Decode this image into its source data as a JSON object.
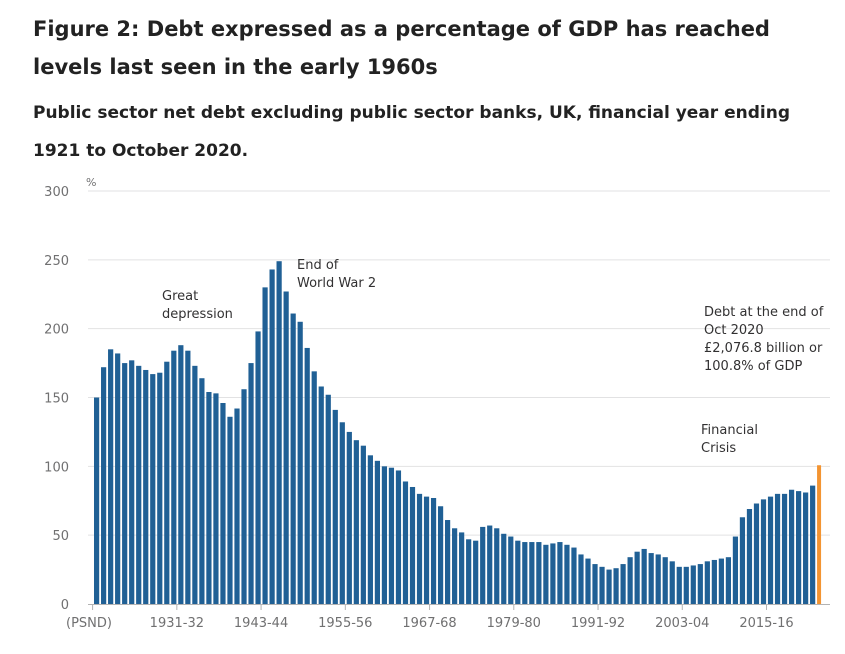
{
  "title": "Figure 2: Debt expressed as a percentage of GDP has reached levels last seen in the early 1960s",
  "subtitle": "Public sector net debt excluding public sector banks, UK, financial year ending 1921 to October 2020.",
  "colors": {
    "bar": "#206095",
    "highlight": "#f39431",
    "grid": "#e2e2e3",
    "axis": "#b3b3b3"
  },
  "chart_data": {
    "type": "bar",
    "ylabel": "%",
    "ylim": [
      0,
      300
    ],
    "yticks": [
      0,
      50,
      100,
      150,
      200,
      250,
      300
    ],
    "grid": true,
    "x_tick_labels": [
      {
        "index": 0,
        "label": "(PSND)"
      },
      {
        "index": 12,
        "label": "1931-32"
      },
      {
        "index": 24,
        "label": "1943-44"
      },
      {
        "index": 36,
        "label": "1955-56"
      },
      {
        "index": 48,
        "label": "1967-68"
      },
      {
        "index": 60,
        "label": "1979-80"
      },
      {
        "index": 72,
        "label": "1991-92"
      },
      {
        "index": 84,
        "label": "2003-04"
      },
      {
        "index": 96,
        "label": "2015-16"
      }
    ],
    "values": [
      150,
      172,
      185,
      182,
      175,
      177,
      173,
      170,
      167,
      168,
      176,
      184,
      188,
      184,
      173,
      164,
      154,
      153,
      146,
      136,
      142,
      156,
      175,
      198,
      230,
      243,
      249,
      227,
      211,
      205,
      186,
      169,
      158,
      152,
      141,
      132,
      125,
      119,
      115,
      108,
      104,
      100,
      99,
      97,
      89,
      85,
      80,
      78,
      77,
      71,
      61,
      55,
      52,
      47,
      46,
      56,
      57,
      55,
      51,
      49,
      46,
      45,
      45,
      45,
      43,
      44,
      45,
      43,
      41,
      36,
      33,
      29,
      27,
      25,
      26,
      29,
      34,
      38,
      40,
      37,
      36,
      34,
      31,
      27,
      27,
      28,
      29,
      31,
      32,
      33,
      34,
      49,
      63,
      69,
      73,
      76,
      78,
      80,
      80,
      83,
      82,
      81,
      86,
      100.8
    ],
    "highlight_index": 103,
    "annotations": [
      {
        "id": "great-depression",
        "lines": [
          "Great",
          "depression"
        ]
      },
      {
        "id": "end-of-ww2",
        "lines": [
          "End of",
          "World War 2"
        ]
      },
      {
        "id": "financial-crisis",
        "lines": [
          "Financial",
          "Crisis"
        ]
      },
      {
        "id": "debt-end-oct-2020",
        "lines": [
          "Debt at the end of",
          "Oct 2020",
          "£2,076.8 billion or",
          "100.8% of GDP"
        ]
      }
    ]
  }
}
